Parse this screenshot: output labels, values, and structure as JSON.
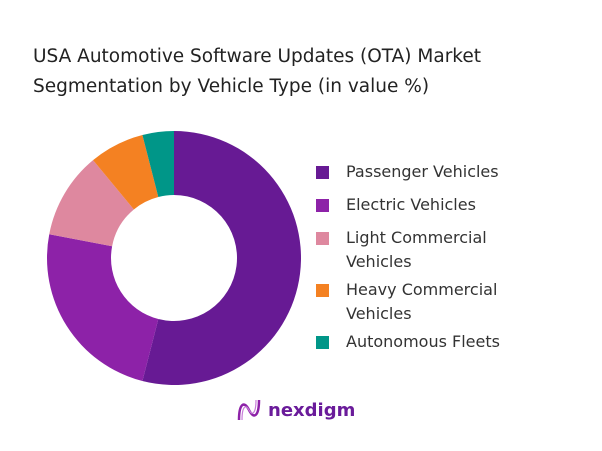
{
  "chart_data": {
    "type": "pie",
    "donut": true,
    "title": "USA Automotive Software Updates (OTA) Market Segmentation by Vehicle Type (in value %)",
    "title_lines": [
      "USA Automotive Software Updates (OTA) Market",
      "Segmentation by Vehicle Type (in value %)"
    ],
    "categories": [
      "Passenger Vehicles",
      "Electric Vehicles",
      "Light Commercial Vehicles",
      "Heavy Commercial Vehicles",
      "Autonomous Fleets"
    ],
    "legend_lines": [
      [
        "Passenger Vehicles"
      ],
      [
        "Electric Vehicles"
      ],
      [
        "Light Commercial",
        "Vehicles"
      ],
      [
        "Heavy Commercial",
        "Vehicles"
      ],
      [
        "Autonomous Fleets"
      ]
    ],
    "values": [
      54,
      24,
      11,
      7,
      4
    ],
    "colors": [
      "#671a94",
      "#8d22a8",
      "#de889f",
      "#f48122",
      "#009688"
    ],
    "legend_placement": "right"
  },
  "logo": {
    "text": "nexdigm"
  }
}
